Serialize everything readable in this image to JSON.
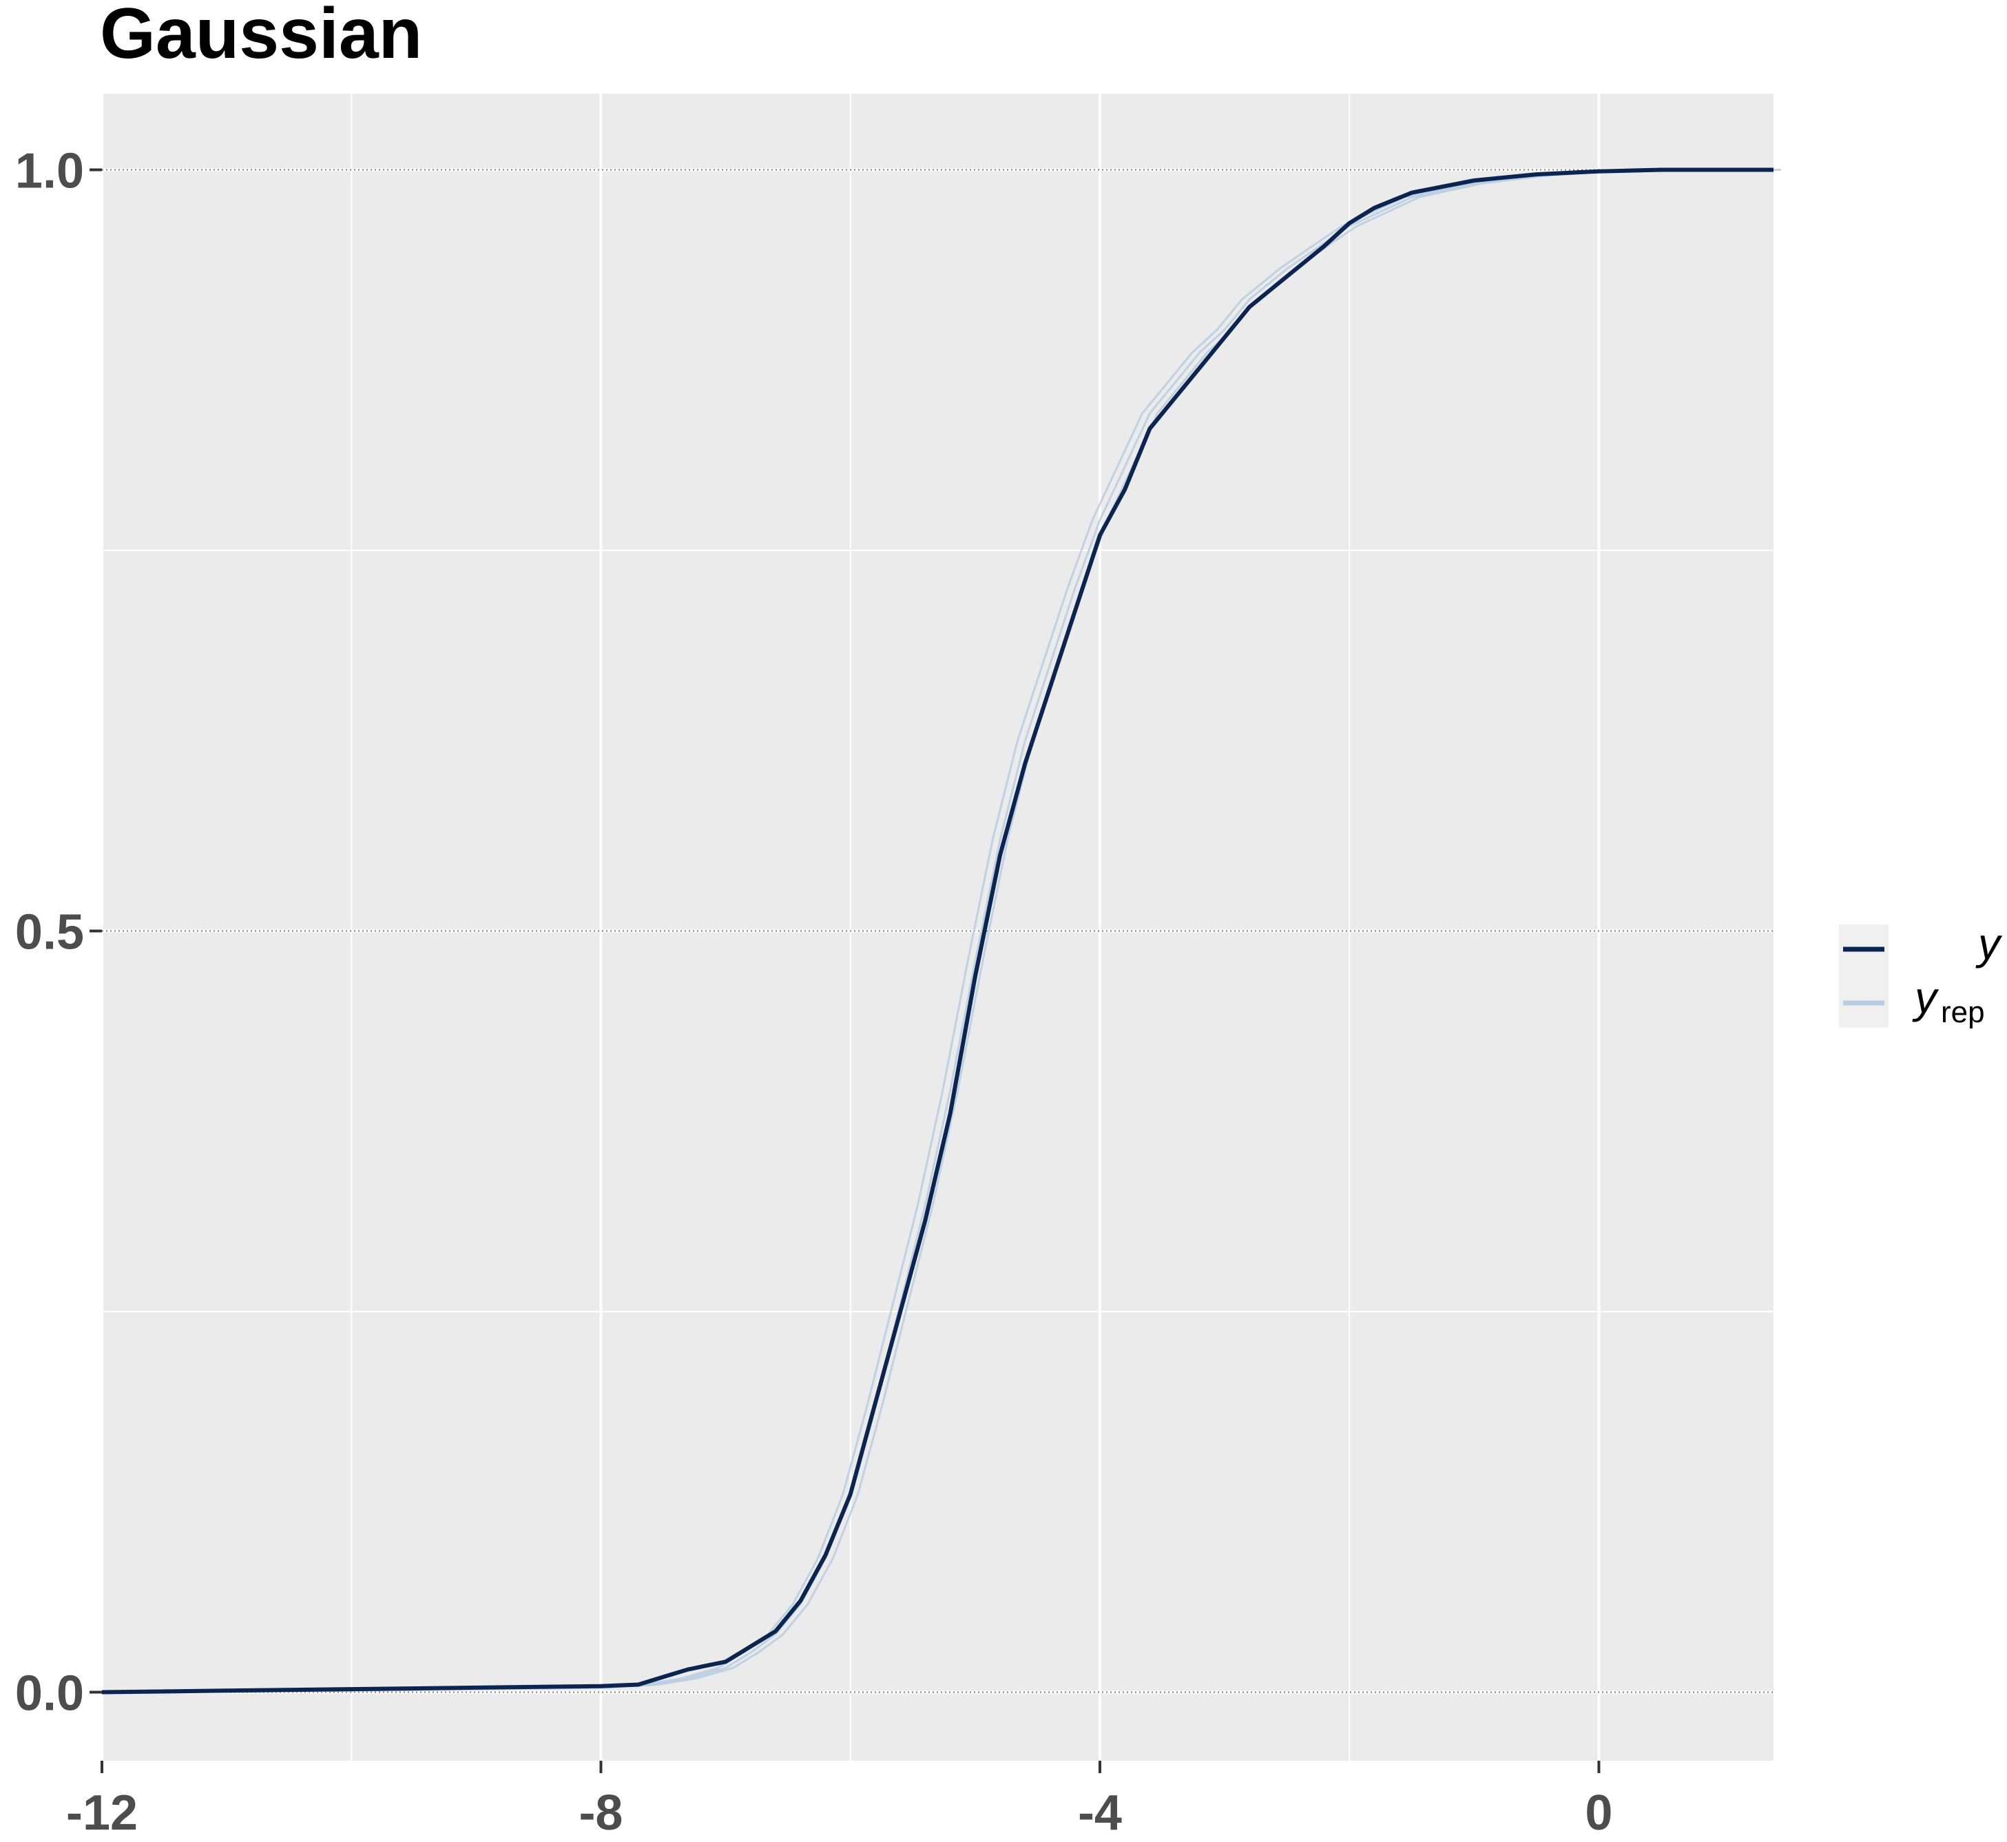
{
  "chart_data": {
    "type": "line",
    "title": "Gaussian",
    "xlabel": "",
    "ylabel": "",
    "xlim": [
      -12,
      1.4
    ],
    "ylim": [
      -0.045,
      1.05
    ],
    "x_ticks": [
      -12,
      -8,
      -4,
      0
    ],
    "x_tick_labels": [
      "-12",
      "-8",
      "-4",
      "0"
    ],
    "y_ticks": [
      0.0,
      0.5,
      1.0
    ],
    "y_tick_labels": [
      "0.0",
      "0.5",
      "1.0"
    ],
    "grid": true,
    "legend_position": "right",
    "legend": [
      {
        "symbol": "y",
        "subscript": "",
        "color": "#0b2550"
      },
      {
        "symbol": "y",
        "subscript": "rep",
        "color": "#b8cde3"
      }
    ],
    "series": [
      {
        "name": "y",
        "color": "#0b2550",
        "x": [
          -12,
          -11,
          -10,
          -9,
          -8,
          -7.7,
          -7.5,
          -7.3,
          -7.0,
          -6.8,
          -6.6,
          -6.4,
          -6.2,
          -6.0,
          -5.8,
          -5.6,
          -5.4,
          -5.2,
          -5.0,
          -4.8,
          -4.6,
          -4.4,
          -4.2,
          -4.0,
          -3.8,
          -3.6,
          -3.4,
          -3.2,
          -3.0,
          -2.8,
          -2.5,
          -2.2,
          -2.0,
          -1.8,
          -1.5,
          -1.0,
          -0.5,
          0,
          0.5,
          1.4
        ],
        "y": [
          0.0,
          0.001,
          0.002,
          0.003,
          0.004,
          0.005,
          0.01,
          0.015,
          0.02,
          0.03,
          0.04,
          0.06,
          0.09,
          0.13,
          0.19,
          0.25,
          0.31,
          0.38,
          0.47,
          0.55,
          0.61,
          0.66,
          0.71,
          0.76,
          0.79,
          0.83,
          0.85,
          0.87,
          0.89,
          0.91,
          0.93,
          0.95,
          0.965,
          0.975,
          0.985,
          0.993,
          0.997,
          0.999,
          1.0,
          1.0
        ]
      },
      {
        "name": "y_rep",
        "color": "#b8cde3",
        "x": [
          -12,
          -10,
          -8,
          -7.6,
          -7.3,
          -7.0,
          -6.8,
          -6.6,
          -6.4,
          -6.2,
          -6.0,
          -5.8,
          -5.6,
          -5.4,
          -5.2,
          -5.0,
          -4.8,
          -4.6,
          -4.4,
          -4.2,
          -4.0,
          -3.8,
          -3.6,
          -3.4,
          -3.2,
          -3.0,
          -2.8,
          -2.5,
          -2.2,
          -2.0,
          -1.5,
          -1.0,
          -0.5,
          0,
          1.4
        ],
        "y": [
          0.0,
          0.001,
          0.003,
          0.005,
          0.009,
          0.016,
          0.026,
          0.038,
          0.058,
          0.088,
          0.13,
          0.19,
          0.255,
          0.32,
          0.395,
          0.48,
          0.56,
          0.625,
          0.675,
          0.725,
          0.77,
          0.805,
          0.84,
          0.86,
          0.88,
          0.895,
          0.915,
          0.935,
          0.952,
          0.963,
          0.982,
          0.991,
          0.996,
          0.999,
          1.0
        ]
      }
    ]
  }
}
